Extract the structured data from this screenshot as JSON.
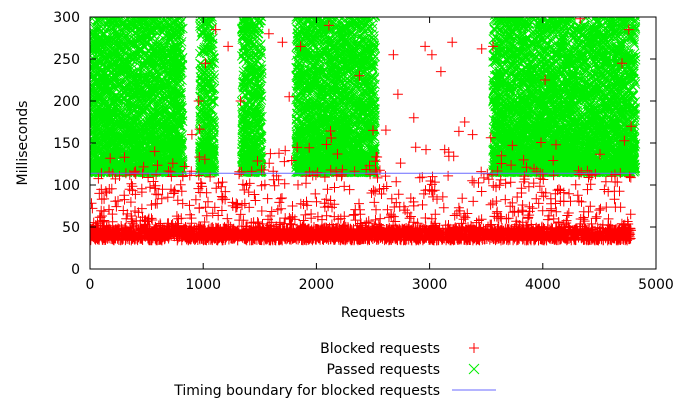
{
  "chart_data": {
    "type": "scatter",
    "xlabel": "Requests",
    "ylabel": "Milliseconds",
    "xlim": [
      0,
      5000
    ],
    "ylim": [
      0,
      300
    ],
    "xticks": [
      0,
      1000,
      2000,
      3000,
      4000,
      5000
    ],
    "yticks": [
      0,
      50,
      100,
      150,
      200,
      250,
      300
    ],
    "xtick_labels": [
      "0",
      "1000",
      "2000",
      "3000",
      "4000",
      "5000"
    ],
    "ytick_labels": [
      "0",
      "50",
      "100",
      "150",
      "200",
      "250",
      "300"
    ],
    "grid": false,
    "legend_placement": "below",
    "series": [
      {
        "name": "Blocked requests",
        "marker": "plus",
        "color": "#ff0000",
        "approx_distribution": "dense band 35-50 ms across requests 0-4780; sparser points 50-120 ms; scattered outliers up to 300 ms",
        "sample_points": [
          [
            30,
            38
          ],
          [
            120,
            45
          ],
          [
            350,
            95
          ],
          [
            520,
            60
          ],
          [
            900,
            160
          ],
          [
            960,
            200
          ],
          [
            1020,
            245
          ],
          [
            1110,
            285
          ],
          [
            1220,
            265
          ],
          [
            1330,
            200
          ],
          [
            1580,
            280
          ],
          [
            1700,
            270
          ],
          [
            1760,
            205
          ],
          [
            1860,
            265
          ],
          [
            2110,
            290
          ],
          [
            2380,
            230
          ],
          [
            2500,
            165
          ],
          [
            2680,
            255
          ],
          [
            2720,
            208
          ],
          [
            2860,
            180
          ],
          [
            2960,
            265
          ],
          [
            3020,
            255
          ],
          [
            3100,
            235
          ],
          [
            3200,
            270
          ],
          [
            3310,
            175
          ],
          [
            3380,
            160
          ],
          [
            3460,
            262
          ],
          [
            3560,
            265
          ],
          [
            4020,
            225
          ],
          [
            4330,
            298
          ],
          [
            4700,
            245
          ],
          [
            4760,
            285
          ],
          [
            4780,
            170
          ]
        ]
      },
      {
        "name": "Passed requests",
        "marker": "x",
        "color": "#00ee00",
        "approx_distribution": "dense clusters 115-300 ms over requests 0-820, 970-1100, 1340-1520, 1820-2520, 3560-4820",
        "clusters": [
          [
            0,
            820
          ],
          [
            970,
            1100
          ],
          [
            1340,
            1520
          ],
          [
            1820,
            2520
          ],
          [
            3560,
            4820
          ]
        ]
      },
      {
        "name": "Timing boundary for blocked requests",
        "marker": "line",
        "color": "#6a6aff",
        "x": [
          0,
          4820
        ],
        "values": [
          114,
          114
        ]
      }
    ]
  }
}
